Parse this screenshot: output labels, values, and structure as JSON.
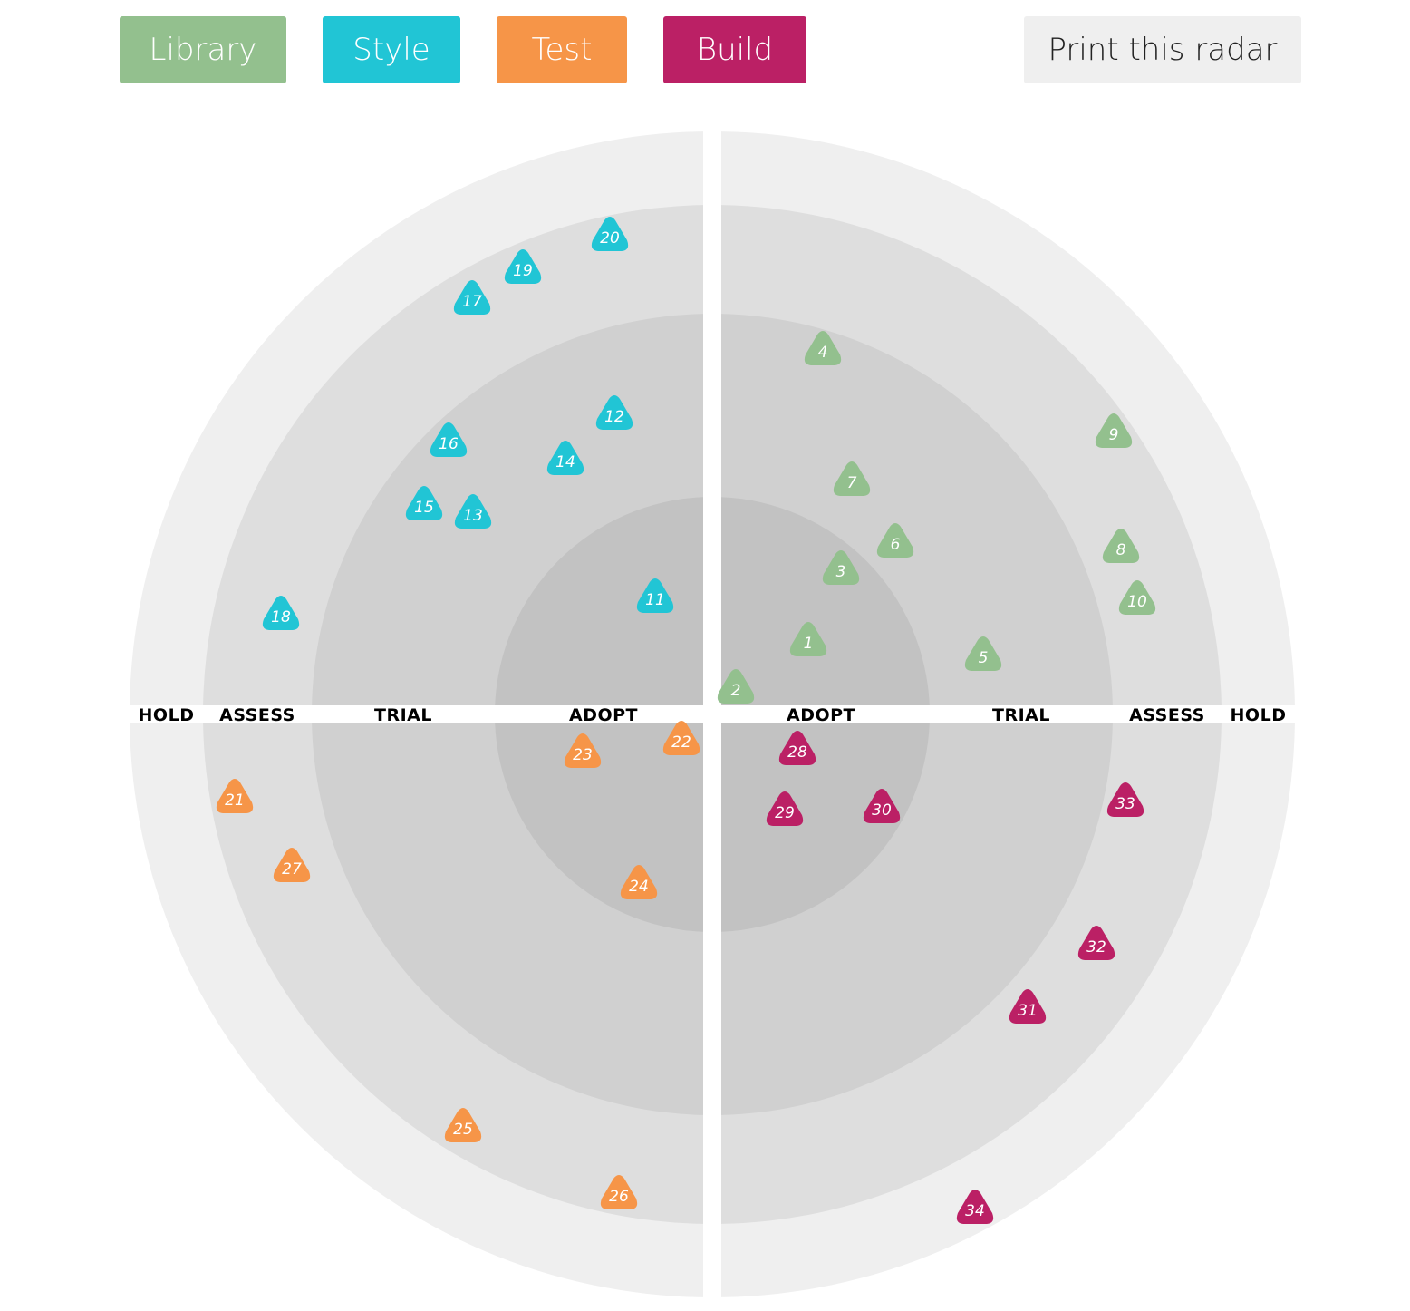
{
  "header": {
    "buttons": [
      {
        "label": "Library",
        "color": "#93c08e"
      },
      {
        "label": "Style",
        "color": "#21c5d5"
      },
      {
        "label": "Test",
        "color": "#f69548"
      },
      {
        "label": "Build",
        "color": "#bb2065"
      }
    ],
    "print_label": "Print this radar",
    "print_bg": "#efefef"
  },
  "radar": {
    "rings": [
      "ADOPT",
      "TRIAL",
      "ASSESS",
      "HOLD"
    ],
    "ring_colors": [
      "#c2c2c2",
      "#d0d0d0",
      "#dedede",
      "#efefef"
    ],
    "quadrants": [
      {
        "name": "Library",
        "color": "#93c08e"
      },
      {
        "name": "Style",
        "color": "#21c5d5"
      },
      {
        "name": "Test",
        "color": "#f69548"
      },
      {
        "name": "Build",
        "color": "#bb2065"
      }
    ],
    "blips": [
      {
        "n": "1",
        "q": "Library"
      },
      {
        "n": "2",
        "q": "Library"
      },
      {
        "n": "3",
        "q": "Library"
      },
      {
        "n": "4",
        "q": "Library"
      },
      {
        "n": "5",
        "q": "Library"
      },
      {
        "n": "6",
        "q": "Library"
      },
      {
        "n": "7",
        "q": "Library"
      },
      {
        "n": "8",
        "q": "Library"
      },
      {
        "n": "9",
        "q": "Library"
      },
      {
        "n": "10",
        "q": "Library"
      },
      {
        "n": "11",
        "q": "Style"
      },
      {
        "n": "12",
        "q": "Style"
      },
      {
        "n": "13",
        "q": "Style"
      },
      {
        "n": "14",
        "q": "Style"
      },
      {
        "n": "15",
        "q": "Style"
      },
      {
        "n": "16",
        "q": "Style"
      },
      {
        "n": "17",
        "q": "Style"
      },
      {
        "n": "18",
        "q": "Style"
      },
      {
        "n": "19",
        "q": "Style"
      },
      {
        "n": "20",
        "q": "Style"
      },
      {
        "n": "21",
        "q": "Test"
      },
      {
        "n": "22",
        "q": "Test"
      },
      {
        "n": "23",
        "q": "Test"
      },
      {
        "n": "24",
        "q": "Test"
      },
      {
        "n": "25",
        "q": "Test"
      },
      {
        "n": "26",
        "q": "Test"
      },
      {
        "n": "27",
        "q": "Test"
      },
      {
        "n": "28",
        "q": "Build"
      },
      {
        "n": "29",
        "q": "Build"
      },
      {
        "n": "30",
        "q": "Build"
      },
      {
        "n": "31",
        "q": "Build"
      },
      {
        "n": "32",
        "q": "Build"
      },
      {
        "n": "33",
        "q": "Build"
      },
      {
        "n": "34",
        "q": "Build"
      }
    ]
  }
}
